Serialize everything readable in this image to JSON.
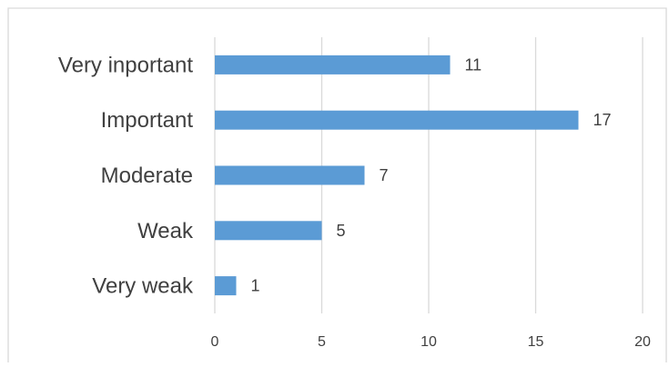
{
  "chart_data": {
    "type": "bar",
    "orientation": "horizontal",
    "categories": [
      "Very inportant",
      "Important",
      "Moderate",
      "Weak",
      "Very weak"
    ],
    "values": [
      11,
      17,
      7,
      5,
      1
    ],
    "title": "",
    "xlabel": "",
    "ylabel": "",
    "xlim": [
      0,
      20
    ],
    "x_ticks": [
      0,
      5,
      10,
      15,
      20
    ],
    "grid": "vertical",
    "legend": "none",
    "data_labels": true,
    "bar_color": "#5b9bd5"
  }
}
